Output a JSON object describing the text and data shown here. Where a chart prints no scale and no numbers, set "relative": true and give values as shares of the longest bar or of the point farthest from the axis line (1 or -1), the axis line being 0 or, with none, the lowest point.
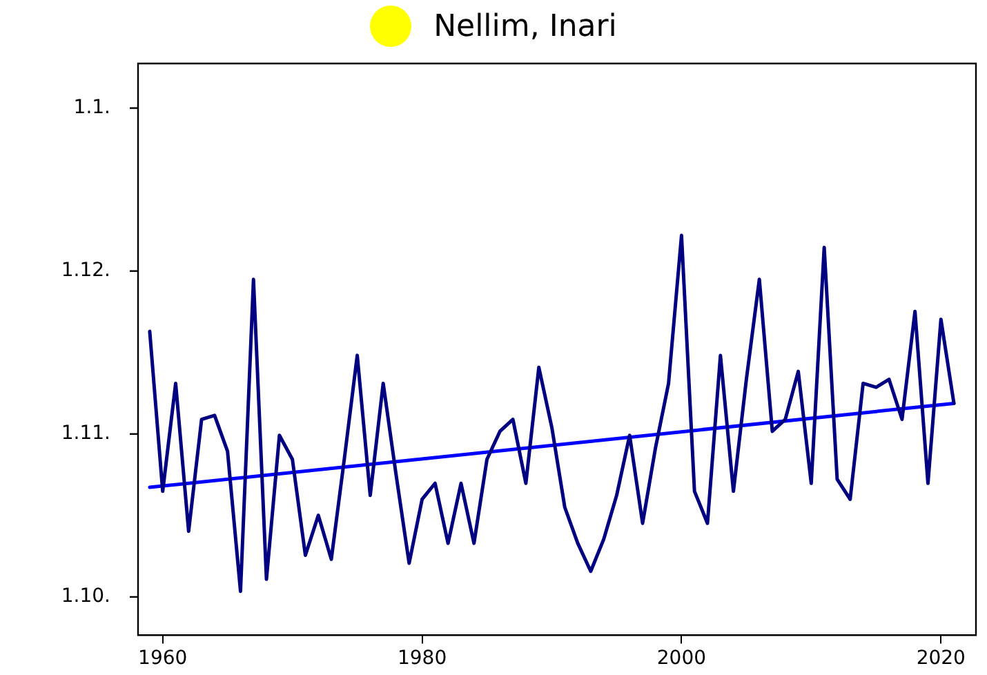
{
  "chart_data": {
    "type": "line",
    "title": "Nellim, Inari",
    "relative": true,
    "x": [
      1959,
      1960,
      1961,
      1962,
      1963,
      1964,
      1965,
      1966,
      1967,
      1968,
      1969,
      1970,
      1971,
      1972,
      1973,
      1974,
      1975,
      1976,
      1977,
      1978,
      1979,
      1980,
      1981,
      1982,
      1983,
      1984,
      1985,
      1986,
      1987,
      1988,
      1989,
      1990,
      1991,
      1992,
      1993,
      1994,
      1995,
      1996,
      1997,
      1998,
      1999,
      2000,
      2001,
      2002,
      2003,
      2004,
      2005,
      2006,
      2007,
      2008,
      2009,
      2010,
      2011,
      2012,
      2013,
      2014,
      2015,
      2016,
      2017,
      2018,
      2019,
      2020,
      2021
    ],
    "series": [
      {
        "color": "#000080",
        "values": [
          0.76,
          0.36,
          0.63,
          0.26,
          0.54,
          0.55,
          0.46,
          0.11,
          0.89,
          0.14,
          0.5,
          0.44,
          0.2,
          0.3,
          0.19,
          0.44,
          0.7,
          0.35,
          0.63,
          0.4,
          0.18,
          0.34,
          0.38,
          0.23,
          0.38,
          0.23,
          0.44,
          0.51,
          0.54,
          0.38,
          0.67,
          0.52,
          0.32,
          0.23,
          0.16,
          0.24,
          0.35,
          0.5,
          0.28,
          0.47,
          0.63,
          1,
          0.36,
          0.28,
          0.7,
          0.36,
          0.64,
          0.89,
          0.51,
          0.54,
          0.66,
          0.38,
          0.97,
          0.39,
          0.34,
          0.63,
          0.62,
          0.64,
          0.54,
          0.81,
          0.38,
          0.79,
          0.58
        ]
      },
      {
        "type": "line",
        "color": "#0000ff",
        "x": [
          1959,
          2021
        ],
        "values": [
          0.37,
          0.58
        ]
      }
    ],
    "xlim": [
      1958.1,
      2022.7
    ],
    "xticks": [
      1960,
      1980,
      2000,
      2020
    ],
    "annotations": [
      "1.1.",
      "1.12.",
      "1.11.",
      "1.10."
    ],
    "grid": false,
    "legend": false,
    "marker": "none",
    "line_style": "solid"
  }
}
